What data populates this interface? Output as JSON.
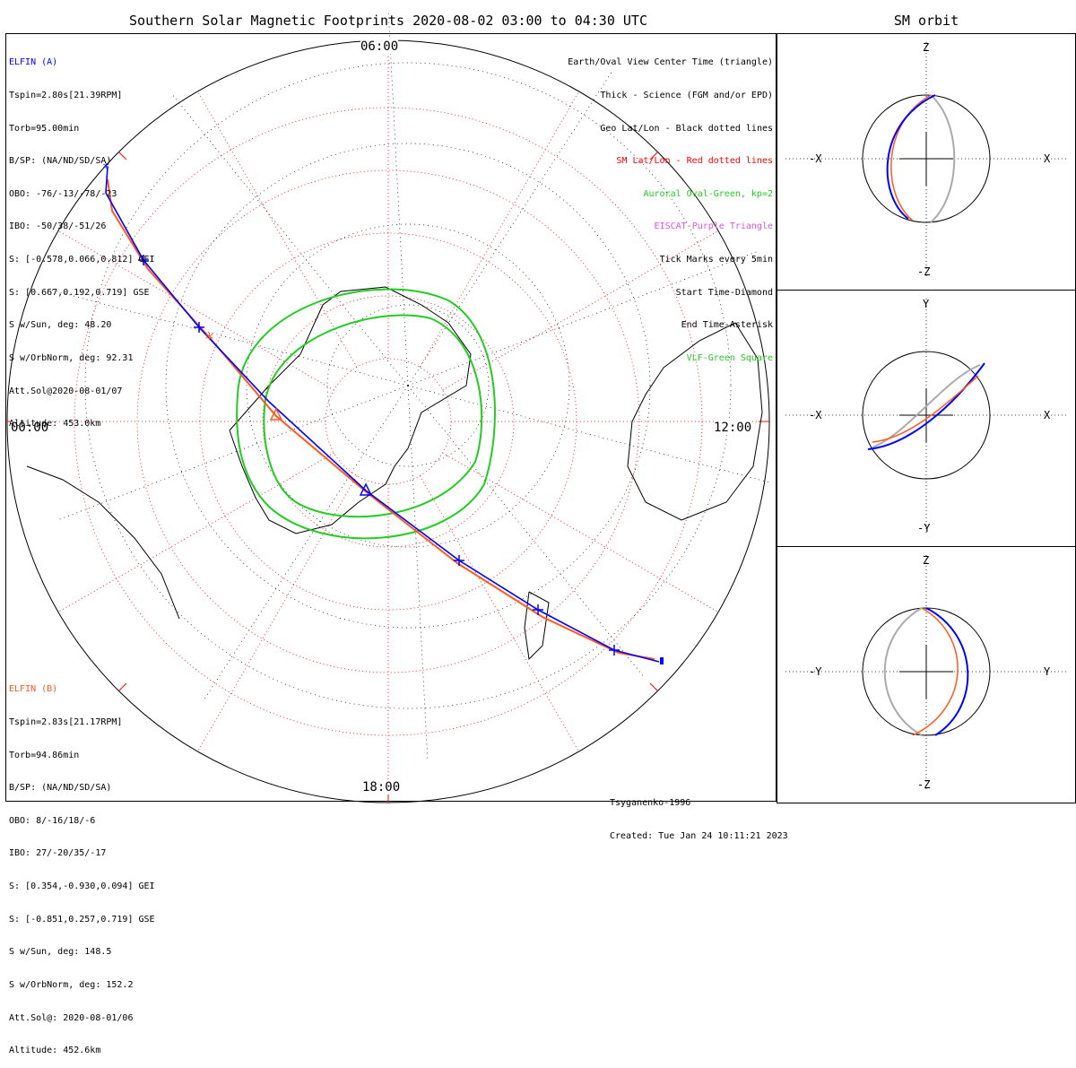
{
  "title": "Southern Solar Magnetic Footprints 2020-08-02 03:00 to 04:30 UTC",
  "sm_title": "SM orbit",
  "elfin_a": {
    "name": "ELFIN (A)",
    "color": "#0000ff",
    "lines": [
      "Tspin=2.80s[21.39RPM]",
      "Torb=95.00min",
      "B/SP: (NA/ND/SD/SA)",
      "OBO: -76/-13/-78/-23",
      "IBO: -50/38/-51/26",
      "S: [-0.578,0.066,0.812] GEI",
      "S: [0.667,0.192,0.719] GSE",
      "S w/Sun, deg: 48.20",
      "S w/OrbNorm, deg: 92.31",
      "Att.Sol@2020-08-01/07",
      "Altitude: 453.0km"
    ]
  },
  "elfin_b": {
    "name": "ELFIN (B)",
    "color": "#ff5a1e",
    "lines": [
      "Tspin=2.83s[21.17RPM]",
      "Torb=94.86min",
      "B/SP: (NA/ND/SD/SA)",
      "OBO: 8/-16/18/-6",
      "IBO: 27/-20/35/-17",
      "S: [0.354,-0.930,0.094] GEI",
      "S: [-0.851,0.257,0.719] GSE",
      "S w/Sun, deg: 148.5",
      "S w/OrbNorm, deg: 152.2",
      "Att.Sol@: 2020-08-01/06",
      "Altitude: 452.6km"
    ]
  },
  "legend": [
    {
      "text": "Earth/Oval View Center Time (triangle)",
      "color": "#000000"
    },
    {
      "text": "Thick - Science (FGM and/or EPD)",
      "color": "#000000"
    },
    {
      "text": "Geo Lat/Lon - Black dotted lines",
      "color": "#000000"
    },
    {
      "text": "SM Lat/Lon - Red dotted lines",
      "color": "#ff0000"
    },
    {
      "text": "Auroral Oval-Green, kp=2",
      "color": "#22cc22"
    },
    {
      "text": "EISCAT-Purple Triangle",
      "color": "#dd55dd"
    },
    {
      "text": "Tick Marks every 5min",
      "color": "#000000"
    },
    {
      "text": "Start Time-Diamond",
      "color": "#000000"
    },
    {
      "text": "End Time-Asterisk",
      "color": "#000000"
    },
    {
      "text": "VLF-Green Square",
      "color": "#22cc22"
    }
  ],
  "hour_labels": {
    "top": "06:00",
    "left": "00:00",
    "right": "12:00",
    "bottom": "18:00"
  },
  "credit": [
    "Tsyganenko-1996",
    "Created: Tue Jan 24 10:11:21 2023"
  ],
  "sm_panels": [
    {
      "name": "xz",
      "top": "Z",
      "bottom": "-Z",
      "left": "-X",
      "right": "X"
    },
    {
      "name": "xy",
      "top": "Y",
      "bottom": "-Y",
      "left": "-X",
      "right": "X"
    },
    {
      "name": "yz",
      "top": "Z",
      "bottom": "-Z",
      "left": "-Y",
      "right": "Y"
    }
  ],
  "colors": {
    "elfin_a_track": "#0000ff",
    "elfin_b_track": "#ff5a1e",
    "sm_grid": "#ff0000",
    "auroral_oval": "#22cc22",
    "orbit_far_side": "#aaaaaa"
  },
  "chart_data": [
    {
      "type": "polar-map",
      "series": [
        {
          "name": "ELFIN (A)"
        },
        {
          "name": "ELFIN (B)"
        }
      ],
      "view_center_times": [
        "06:00",
        "00:00",
        "12:00",
        "18:00"
      ]
    },
    {
      "type": "orbit",
      "title": "SM orbit",
      "panels": [
        [
          "-X",
          "X",
          "Z",
          "-Z"
        ],
        [
          "-X",
          "X",
          "Y",
          "-Y"
        ],
        [
          "-Y",
          "Y",
          "Z",
          "-Z"
        ]
      ]
    }
  ]
}
